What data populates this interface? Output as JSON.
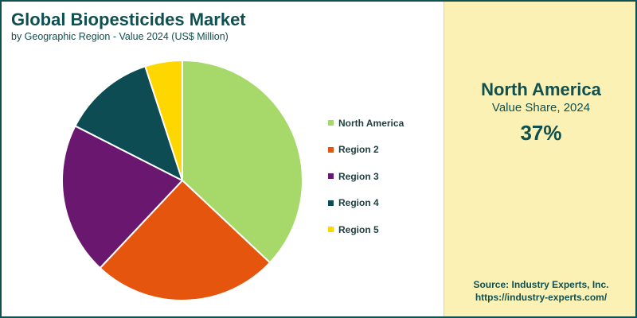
{
  "chart_data": {
    "type": "pie",
    "title": "Global Biopesticides Market",
    "subtitle": "by Geographic Region - Value 2024 (US$ Million)",
    "categories": [
      "North America",
      "Region 2",
      "Region 3",
      "Region 4",
      "Region 5"
    ],
    "values": [
      37,
      25,
      20.5,
      12.5,
      5
    ],
    "colors": [
      "#a6d96a",
      "#e6550d",
      "#6a1770",
      "#0d4c52",
      "#fed700"
    ],
    "legend_position": "right"
  },
  "highlight": {
    "region": "North America",
    "label": "Value Share, 2024",
    "value": "37%"
  },
  "source": {
    "line1": "Source: Industry Experts, Inc.",
    "line2": "https://industry-experts.com/"
  }
}
